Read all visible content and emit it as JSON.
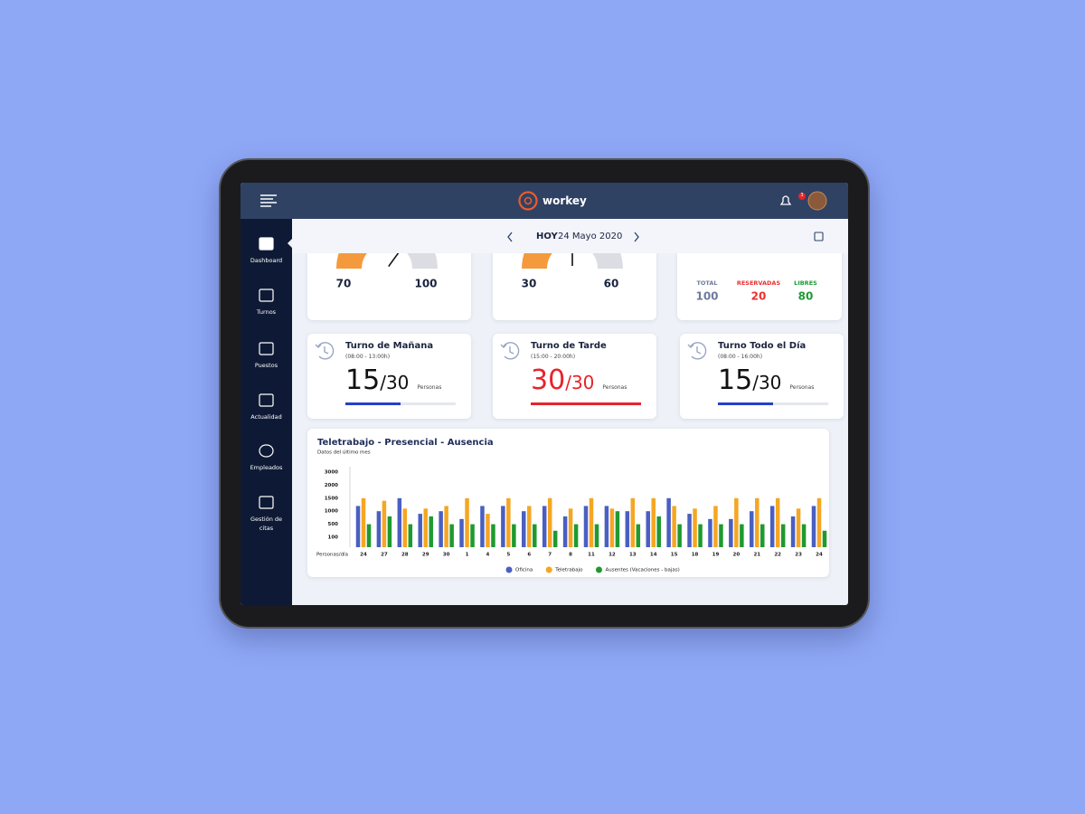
{
  "header": {
    "brand": "workey",
    "notifications": "3"
  },
  "sidebar": {
    "items": [
      "Dashboard",
      "Turnos",
      "Puestos",
      "Actualidad",
      "Empleados",
      "Gestión de citas"
    ],
    "active": 0
  },
  "date_bar": {
    "today": "HOY",
    "date": "24 Mayo 2020"
  },
  "gauges": [
    {
      "value": 70,
      "max": 100
    },
    {
      "value": 30,
      "max": 60
    }
  ],
  "summary": {
    "items": [
      {
        "label": "TOTAL",
        "value": 100,
        "color": "#6e7b9c"
      },
      {
        "label": "RESERVADAS",
        "value": 20,
        "color": "#ec2f2f"
      },
      {
        "label": "LIBRES",
        "value": 80,
        "color": "#1f9a36"
      }
    ]
  },
  "shifts": [
    {
      "title": "Turno de Mañana",
      "hours": "(08:00 - 13:00h)",
      "count": 15,
      "separator": "/",
      "capacity": 30,
      "unit": "Personas",
      "color": "#2341c8"
    },
    {
      "title": "Turno de Tarde",
      "hours": "(15:00 - 20:00h)",
      "count": 30,
      "separator": "/",
      "capacity": 30,
      "unit": "Personas",
      "color": "#e8232a"
    },
    {
      "title": "Turno Todo el Día",
      "hours": "(08:00 - 16:00h)",
      "count": 15,
      "separator": "/",
      "capacity": 30,
      "unit": "Personas",
      "color": "#2341c8"
    }
  ],
  "chart_data": {
    "type": "bar",
    "title": "Teletrabajo - Presencial - Ausencia",
    "subtitle": "Datos del último mes",
    "x_label": "Personas/día",
    "categories": [
      "24",
      "27",
      "28",
      "29",
      "30",
      "1",
      "4",
      "5",
      "6",
      "7",
      "8",
      "11",
      "12",
      "13",
      "14",
      "15",
      "18",
      "19",
      "20",
      "21",
      "22",
      "23",
      "24"
    ],
    "series": [
      {
        "name": "Oficina",
        "color": "#4a5fc1",
        "values": [
          1200,
          1000,
          1500,
          900,
          1000,
          700,
          1200,
          1200,
          1000,
          1200,
          800,
          1200,
          1200,
          1000,
          1000,
          1500,
          900,
          700,
          700,
          1000,
          1200,
          800,
          1200
        ]
      },
      {
        "name": "Teletrabajo",
        "color": "#f5a623",
        "values": [
          1500,
          1400,
          1100,
          1100,
          1200,
          1500,
          900,
          1500,
          1200,
          1500,
          1100,
          1500,
          1100,
          1500,
          1500,
          1200,
          1100,
          1200,
          1500,
          1500,
          1500,
          1100,
          1500
        ]
      },
      {
        "name": "Ausentes (Vacaciones - bajas)",
        "color": "#1e9a2f",
        "values": [
          500,
          800,
          500,
          800,
          500,
          500,
          500,
          500,
          500,
          300,
          500,
          500,
          1000,
          500,
          800,
          500,
          500,
          500,
          500,
          500,
          500,
          500,
          300
        ]
      }
    ],
    "ylim": [
      0,
      3000
    ],
    "yticks": [
      100,
      500,
      1000,
      1500,
      2000,
      3000
    ],
    "grid": false,
    "legend": "bottom"
  }
}
